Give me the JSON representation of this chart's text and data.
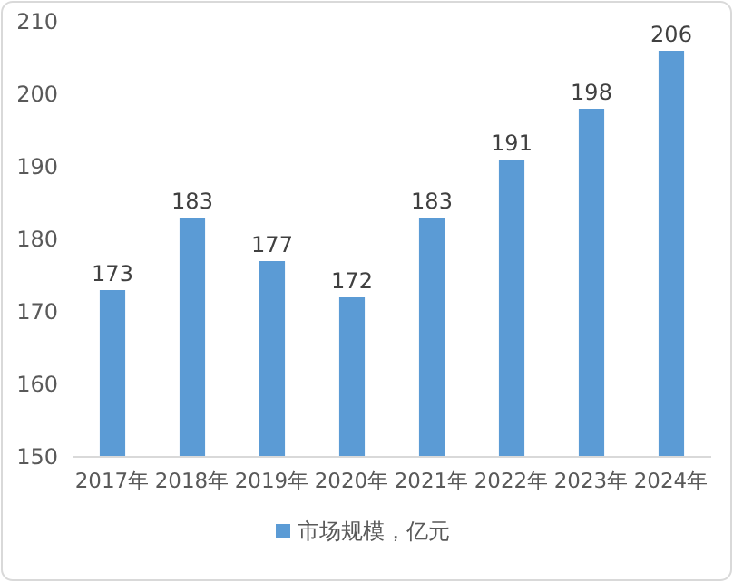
{
  "chart_data": {
    "type": "bar",
    "categories": [
      "2017年",
      "2018年",
      "2019年",
      "2020年",
      "2021年",
      "2022年",
      "2023年",
      "2024年"
    ],
    "series": [
      {
        "name": "市场规模，亿元",
        "color": "#5b9bd5",
        "values": [
          173,
          183,
          177,
          172,
          183,
          191,
          198,
          206
        ]
      }
    ],
    "ylim": [
      150,
      210
    ],
    "yticks": [
      150,
      160,
      170,
      180,
      190,
      200,
      210
    ],
    "data_labels": true,
    "legend": "bottom",
    "grid": false
  }
}
